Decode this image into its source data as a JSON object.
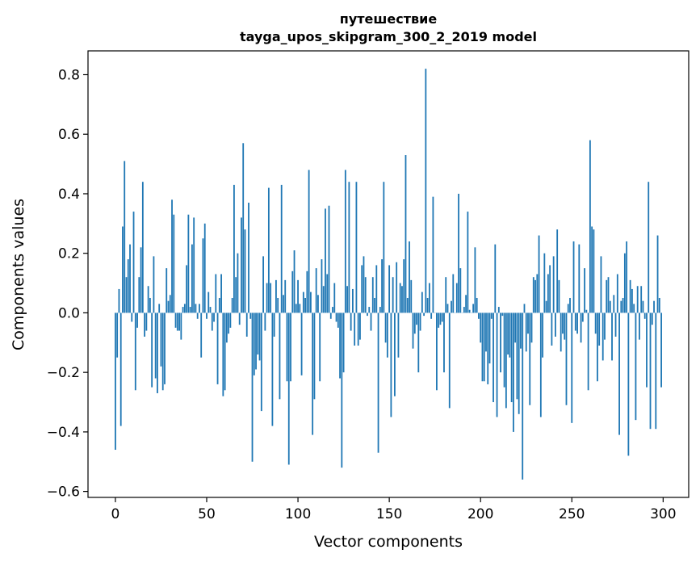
{
  "chart_data": {
    "type": "bar",
    "title": "путешествие",
    "subtitle": "tayga_upos_skipgram_300_2_2019 model",
    "xlabel": "Vector components",
    "ylabel": "Components values",
    "xlim": [
      -15,
      314
    ],
    "ylim": [
      -0.62,
      0.88
    ],
    "xticks": [
      0,
      50,
      100,
      150,
      200,
      250,
      300
    ],
    "yticks": [
      -0.6,
      -0.4,
      -0.2,
      0.0,
      0.2,
      0.4,
      0.6,
      0.8
    ],
    "xtick_labels": [
      "0",
      "50",
      "100",
      "150",
      "200",
      "250",
      "300"
    ],
    "ytick_labels": [
      "−0.6",
      "−0.4",
      "−0.2",
      "0.0",
      "0.2",
      "0.4",
      "0.6",
      "0.8"
    ],
    "grid": false,
    "bar_color": "#1f77b4",
    "x": [
      0,
      1,
      2,
      3,
      4,
      5,
      6,
      7,
      8,
      9,
      10,
      11,
      12,
      13,
      14,
      15,
      16,
      17,
      18,
      19,
      20,
      21,
      22,
      23,
      24,
      25,
      26,
      27,
      28,
      29,
      30,
      31,
      32,
      33,
      34,
      35,
      36,
      37,
      38,
      39,
      40,
      41,
      42,
      43,
      44,
      45,
      46,
      47,
      48,
      49,
      50,
      51,
      52,
      53,
      54,
      55,
      56,
      57,
      58,
      59,
      60,
      61,
      62,
      63,
      64,
      65,
      66,
      67,
      68,
      69,
      70,
      71,
      72,
      73,
      74,
      75,
      76,
      77,
      78,
      79,
      80,
      81,
      82,
      83,
      84,
      85,
      86,
      87,
      88,
      89,
      90,
      91,
      92,
      93,
      94,
      95,
      96,
      97,
      98,
      99,
      100,
      101,
      102,
      103,
      104,
      105,
      106,
      107,
      108,
      109,
      110,
      111,
      112,
      113,
      114,
      115,
      116,
      117,
      118,
      119,
      120,
      121,
      122,
      123,
      124,
      125,
      126,
      127,
      128,
      129,
      130,
      131,
      132,
      133,
      134,
      135,
      136,
      137,
      138,
      139,
      140,
      141,
      142,
      143,
      144,
      145,
      146,
      147,
      148,
      149,
      150,
      151,
      152,
      153,
      154,
      155,
      156,
      157,
      158,
      159,
      160,
      161,
      162,
      163,
      164,
      165,
      166,
      167,
      168,
      169,
      170,
      171,
      172,
      173,
      174,
      175,
      176,
      177,
      178,
      179,
      180,
      181,
      182,
      183,
      184,
      185,
      186,
      187,
      188,
      189,
      190,
      191,
      192,
      193,
      194,
      195,
      196,
      197,
      198,
      199,
      200,
      201,
      202,
      203,
      204,
      205,
      206,
      207,
      208,
      209,
      210,
      211,
      212,
      213,
      214,
      215,
      216,
      217,
      218,
      219,
      220,
      221,
      222,
      223,
      224,
      225,
      226,
      227,
      228,
      229,
      230,
      231,
      232,
      233,
      234,
      235,
      236,
      237,
      238,
      239,
      240,
      241,
      242,
      243,
      244,
      245,
      246,
      247,
      248,
      249,
      250,
      251,
      252,
      253,
      254,
      255,
      256,
      257,
      258,
      259,
      260,
      261,
      262,
      263,
      264,
      265,
      266,
      267,
      268,
      269,
      270,
      271,
      272,
      273,
      274,
      275,
      276,
      277,
      278,
      279,
      280,
      281,
      282,
      283,
      284,
      285,
      286,
      287,
      288,
      289,
      290,
      291,
      292,
      293,
      294,
      295,
      296,
      297,
      298,
      299
    ],
    "values": [
      -0.46,
      -0.15,
      0.08,
      -0.38,
      0.29,
      0.51,
      0.12,
      0.18,
      0.23,
      -0.03,
      0.34,
      -0.26,
      -0.05,
      0.12,
      0.22,
      0.44,
      -0.08,
      -0.06,
      0.09,
      0.05,
      -0.25,
      0.19,
      -0.22,
      -0.27,
      0.03,
      -0.18,
      -0.26,
      -0.24,
      0.15,
      0.04,
      0.06,
      0.38,
      0.33,
      -0.05,
      -0.06,
      -0.06,
      -0.09,
      0.02,
      0.03,
      0.16,
      0.33,
      0.02,
      0.23,
      0.32,
      0.03,
      -0.02,
      0.03,
      -0.15,
      0.25,
      0.3,
      -0.02,
      0.07,
      0.02,
      -0.06,
      -0.03,
      0.13,
      -0.24,
      0.05,
      0.13,
      -0.28,
      -0.26,
      -0.1,
      -0.07,
      -0.05,
      0.05,
      0.43,
      0.12,
      0.2,
      -0.04,
      0.32,
      0.57,
      0.28,
      -0.08,
      0.37,
      -0.02,
      -0.5,
      -0.21,
      -0.19,
      -0.14,
      -0.16,
      -0.33,
      0.19,
      -0.06,
      0.1,
      0.42,
      0.1,
      -0.38,
      -0.08,
      0.11,
      0.05,
      -0.29,
      0.43,
      0.06,
      0.11,
      -0.23,
      -0.51,
      -0.23,
      0.14,
      0.21,
      0.03,
      0.11,
      0.03,
      -0.21,
      0.07,
      0.05,
      0.14,
      0.48,
      0.07,
      -0.41,
      -0.29,
      0.15,
      0.06,
      -0.23,
      0.18,
      0.09,
      0.35,
      0.13,
      0.36,
      -0.02,
      0.02,
      0.1,
      -0.03,
      -0.05,
      -0.22,
      -0.52,
      -0.2,
      0.48,
      0.09,
      0.44,
      -0.06,
      0.08,
      -0.11,
      0.44,
      -0.11,
      -0.09,
      0.16,
      0.19,
      0.12,
      -0.01,
      0.02,
      -0.06,
      0.12,
      0.05,
      0.16,
      -0.47,
      0.02,
      0.18,
      0.44,
      -0.1,
      -0.15,
      0.16,
      -0.35,
      0.12,
      -0.28,
      0.17,
      -0.15,
      0.1,
      0.09,
      0.18,
      0.53,
      0.05,
      0.24,
      0.11,
      -0.12,
      -0.07,
      -0.04,
      -0.2,
      -0.06,
      0.07,
      -0.01,
      0.82,
      0.05,
      0.1,
      -0.02,
      0.39,
      0.0,
      -0.26,
      -0.05,
      -0.04,
      -0.03,
      -0.2,
      0.12,
      0.03,
      -0.32,
      0.04,
      0.13,
      0.0,
      0.1,
      0.4,
      0.15,
      0.0,
      0.02,
      0.06,
      0.34,
      0.01,
      0.0,
      0.03,
      0.22,
      0.05,
      -0.02,
      -0.1,
      -0.23,
      -0.23,
      -0.13,
      -0.24,
      -0.17,
      -0.02,
      -0.3,
      0.23,
      -0.35,
      0.02,
      -0.2,
      -0.01,
      -0.25,
      -0.32,
      -0.14,
      -0.15,
      -0.3,
      -0.4,
      -0.1,
      -0.29,
      -0.34,
      -0.12,
      -0.56,
      0.03,
      -0.13,
      -0.07,
      -0.31,
      -0.1,
      0.12,
      0.11,
      0.13,
      0.26,
      -0.35,
      -0.15,
      0.2,
      0.04,
      0.13,
      0.16,
      -0.11,
      0.19,
      -0.08,
      0.28,
      0.11,
      -0.13,
      -0.07,
      -0.09,
      -0.31,
      0.03,
      0.05,
      -0.37,
      0.24,
      -0.06,
      -0.07,
      0.23,
      -0.1,
      -0.03,
      0.15,
      0.01,
      -0.26,
      0.58,
      0.29,
      0.28,
      -0.07,
      -0.23,
      -0.11,
      0.19,
      -0.16,
      -0.09,
      0.11,
      0.12,
      0.04,
      -0.16,
      0.06,
      -0.08,
      0.13,
      -0.41,
      0.04,
      0.05,
      0.2,
      0.24,
      -0.48,
      0.11,
      0.08,
      0.03,
      -0.36,
      0.09,
      -0.09,
      0.09,
      0.04,
      -0.02,
      -0.25,
      0.44,
      -0.39,
      -0.04,
      0.04,
      -0.39,
      0.26,
      0.05,
      -0.25
    ]
  }
}
